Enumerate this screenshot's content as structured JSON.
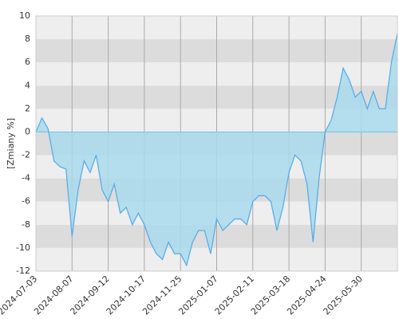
{
  "chart_data": {
    "type": "area",
    "y_label": "[Zmiany %]",
    "categories": [
      "2024-07-03",
      null,
      null,
      null,
      null,
      null,
      "2024-08-07",
      null,
      null,
      null,
      null,
      null,
      "2024-09-12",
      null,
      null,
      null,
      null,
      null,
      "2024-10-17",
      null,
      null,
      null,
      null,
      null,
      "2024-11-25",
      null,
      null,
      null,
      null,
      null,
      "2025-01-07",
      null,
      null,
      null,
      null,
      null,
      "2025-02-11",
      null,
      null,
      null,
      null,
      null,
      "2025-03-18",
      null,
      null,
      null,
      null,
      null,
      "2025-04-24",
      null,
      null,
      null,
      null,
      null,
      "2025-05-30",
      null,
      null,
      null,
      null,
      null,
      null
    ],
    "values": [
      0,
      1.2,
      0.3,
      -2.5,
      -3,
      -3.2,
      -9,
      -5,
      -2.5,
      -3.5,
      -2,
      -5,
      -6,
      -4.5,
      -7,
      -6.5,
      -8,
      -7,
      -8,
      -9.5,
      -10.5,
      -11,
      -9.5,
      -10.5,
      -10.5,
      -11.5,
      -9.5,
      -8.5,
      -8.5,
      -10.5,
      -7.5,
      -8.5,
      -8,
      -7.5,
      -7.5,
      -8,
      -6,
      -5.5,
      -5.5,
      -6,
      -8.5,
      -6.5,
      -3.5,
      -2,
      -2.5,
      -4.5,
      -9.5,
      -4,
      0,
      1,
      3,
      5.5,
      4.5,
      3,
      3.5,
      2,
      3.5,
      2,
      2,
      6,
      8.5
    ],
    "line_color": "#5aaee8",
    "fill_color": "#a9d9ec",
    "ylim": [
      -12,
      10
    ],
    "yticks": [
      -12,
      -10,
      -8,
      -6,
      -4,
      -2,
      0,
      2,
      4,
      6,
      8,
      10
    ],
    "grid": true
  }
}
